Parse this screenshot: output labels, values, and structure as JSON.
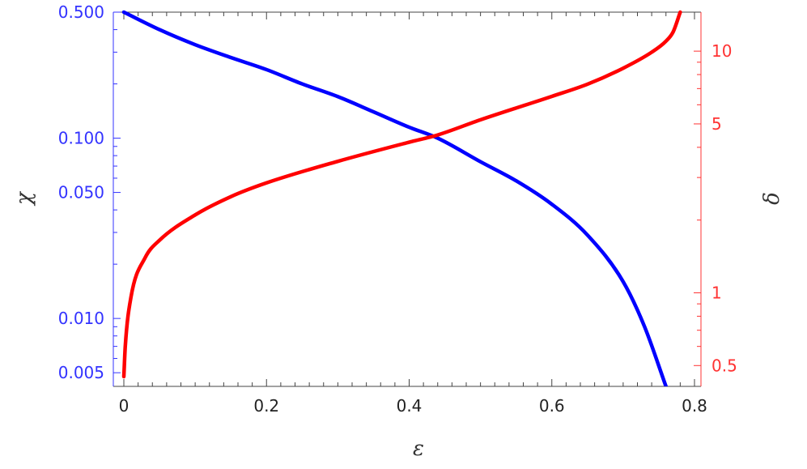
{
  "chart_data": {
    "type": "line",
    "xlabel": "ε",
    "ylabel_left": "χ",
    "ylabel_right": "δ",
    "xlim": [
      0,
      0.8
    ],
    "ylim_left": [
      0.0042,
      0.5
    ],
    "ylim_right": [
      0.41,
      14.5
    ],
    "left_scale": "log",
    "right_scale": "log",
    "grid": false,
    "legend": "none",
    "x_ticks": [
      "0",
      "0.2",
      "0.4",
      "0.6",
      "0.8"
    ],
    "left_ticks": [
      "0.005",
      "0.010",
      "0.050",
      "0.100",
      "0.500"
    ],
    "right_ticks": [
      "0.5",
      "1",
      "5",
      "10"
    ],
    "series": [
      {
        "axis": "left",
        "color": "#0000ff",
        "x": [
          0,
          0.05,
          0.1,
          0.15,
          0.2,
          0.25,
          0.3,
          0.35,
          0.4,
          0.44,
          0.5,
          0.55,
          0.6,
          0.65,
          0.7,
          0.73,
          0.76
        ],
        "y": [
          0.5,
          0.4,
          0.33,
          0.28,
          0.24,
          0.2,
          0.17,
          0.14,
          0.115,
          0.1,
          0.074,
          0.058,
          0.043,
          0.029,
          0.016,
          0.009,
          0.0042
        ]
      },
      {
        "axis": "right",
        "color": "#ff0000",
        "x": [
          0,
          0.002,
          0.01,
          0.03,
          0.05,
          0.1,
          0.15,
          0.2,
          0.3,
          0.4,
          0.44,
          0.5,
          0.6,
          0.65,
          0.7,
          0.74,
          0.76,
          0.77,
          0.78
        ],
        "y": [
          0.45,
          0.6,
          0.96,
          1.4,
          1.65,
          2.1,
          2.5,
          2.85,
          3.5,
          4.2,
          4.5,
          5.2,
          6.5,
          7.3,
          8.5,
          9.9,
          11,
          12,
          14.5
        ]
      }
    ],
    "colors": {
      "left_axis": "#3333ff",
      "right_axis": "#ff3333",
      "frame": "#444444"
    }
  }
}
